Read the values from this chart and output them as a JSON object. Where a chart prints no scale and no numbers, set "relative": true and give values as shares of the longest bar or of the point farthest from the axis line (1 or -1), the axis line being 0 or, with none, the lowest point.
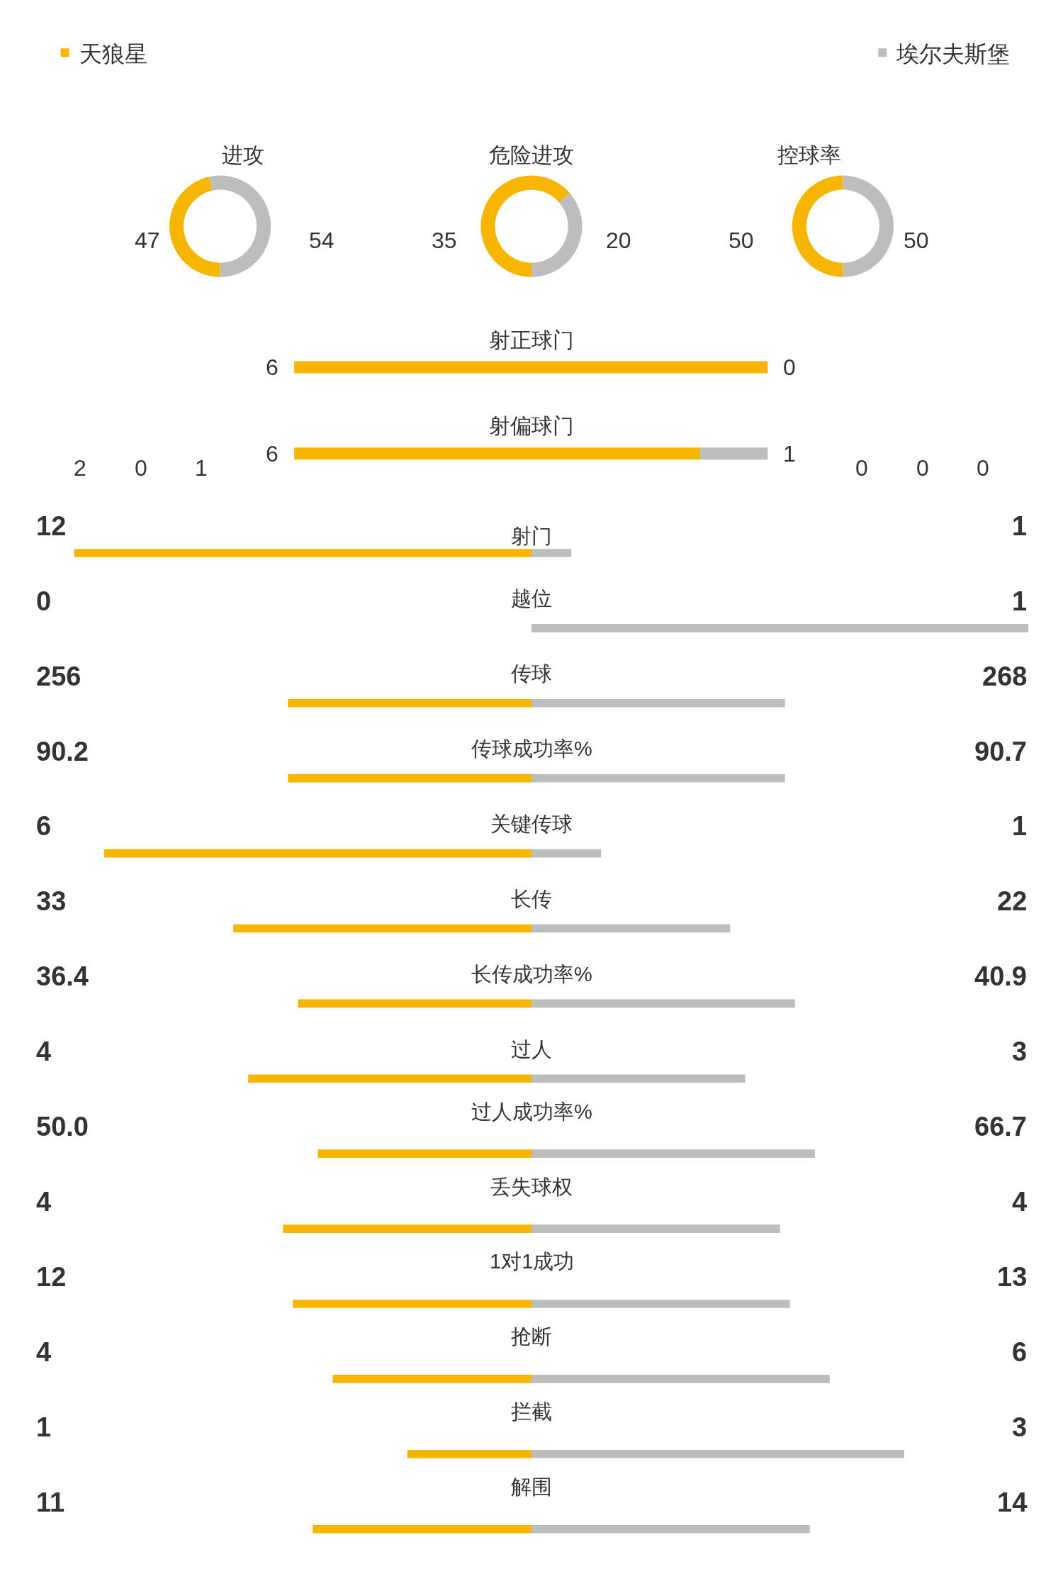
{
  "chart_data": [
    {
      "type": "donut",
      "title": "进攻",
      "categories": [
        null,
        null
      ],
      "values": [
        47,
        54
      ],
      "colors": [
        "#f8b500",
        "#bdbdbd"
      ],
      "data_labels": true
    },
    {
      "type": "donut",
      "title": "危险进攻",
      "categories": [
        null,
        null
      ],
      "values": [
        35,
        20
      ],
      "colors": [
        "#f8b500",
        "#bdbdbd"
      ],
      "data_labels": true
    },
    {
      "type": "donut",
      "title": "控球率",
      "categories": [
        null,
        null
      ],
      "values": [
        50,
        50
      ],
      "colors": [
        "#f8b500",
        "#bdbdbd"
      ],
      "data_labels": true
    },
    {
      "type": "bar",
      "orientation": "horizontal",
      "stacked": true,
      "relative": true,
      "categories": [
        "射正球门",
        "射偏球门"
      ],
      "series": [
        {
          "color": "#f8b500",
          "values": [
            1.0,
            0.857
          ]
        },
        {
          "color": "#bdbdbd",
          "values": [
            0.0,
            0.143
          ]
        }
      ],
      "annotations": [
        "6",
        "0",
        "6",
        "1",
        "2",
        "0",
        "1",
        "0",
        "0",
        "0"
      ]
    },
    {
      "type": "bar",
      "orientation": "horizontal",
      "stacked": true,
      "relative": true,
      "legend": "top",
      "categories": [
        "射门",
        "越位",
        "传球",
        "传球成功率%",
        "关键传球",
        "长传",
        "长传成功率%",
        "过人",
        "过人成功率%",
        "丢失球权",
        "1对1成功",
        "抢断",
        "拦截",
        "解围"
      ],
      "series": [
        {
          "name": "天狼星",
          "color": "#f8b500",
          "values": [
            -0.92,
            0.0,
            -0.49,
            -0.49,
            -0.86,
            -0.6,
            -0.47,
            -0.57,
            -0.43,
            -0.5,
            -0.48,
            -0.4,
            -0.25,
            -0.44
          ]
        },
        {
          "name": "埃尔夫斯堡",
          "color": "#bdbdbd",
          "values": [
            0.08,
            1.0,
            0.51,
            0.51,
            0.14,
            0.4,
            0.53,
            0.43,
            0.57,
            0.5,
            0.52,
            0.6,
            0.75,
            0.56
          ]
        }
      ],
      "annotations": [
        "12",
        "1",
        "0",
        "1",
        "256",
        "268",
        "90.2",
        "90.7",
        "6",
        "1",
        "33",
        "22",
        "36.4",
        "40.9",
        "4",
        "3",
        "50.0",
        "66.7",
        "4",
        "4",
        "12",
        "13",
        "4",
        "6",
        "1",
        "3",
        "11",
        "14"
      ]
    }
  ]
}
